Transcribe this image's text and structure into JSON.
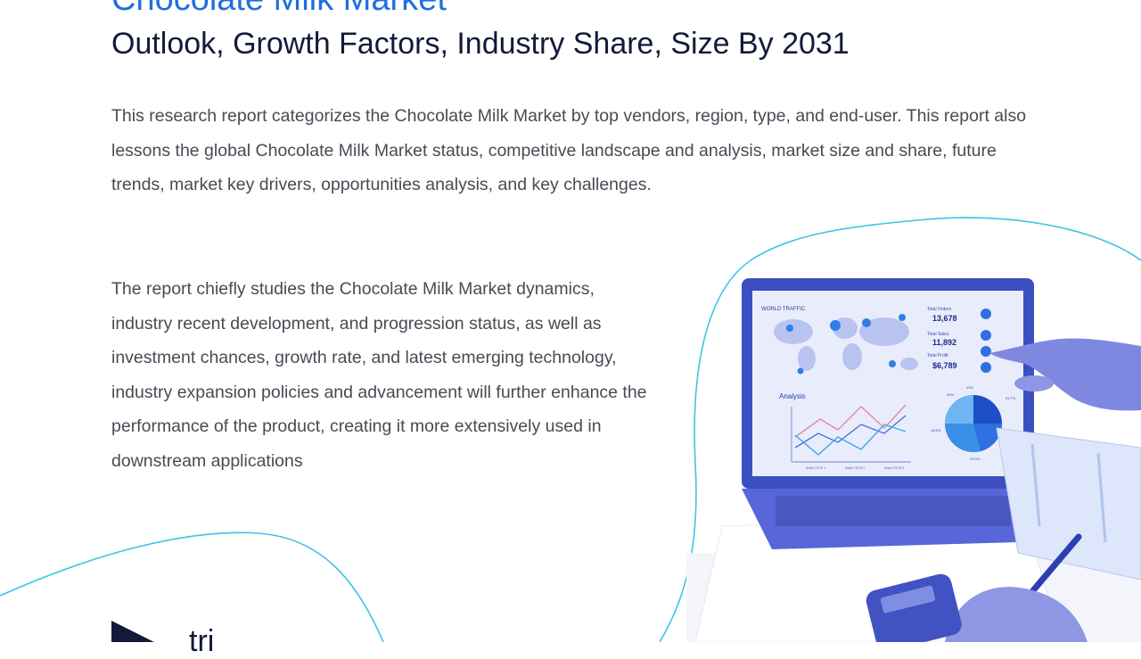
{
  "header": {
    "title": "Chocolate Milk Market",
    "subtitle": "Outlook, Growth Factors, Industry Share, Size By 2031"
  },
  "body": {
    "paragraph1": "This research report categorizes the Chocolate Milk Market by top vendors, region, type, and end-user. This report also lessons the global Chocolate Milk Market status, competitive landscape and analysis, market size and share, future trends, market key drivers, opportunities analysis, and key challenges.",
    "paragraph2": "The report chiefly studies the Chocolate Milk Market dynamics, industry recent development, and progression status, as well as investment chances, growth rate, and latest emerging technology, industry expansion policies and advancement will further enhance the performance of the product, creating it more extensively used in downstream applications"
  },
  "illustration": {
    "screen_title": "WORLD TRAFFIC",
    "stats": [
      {
        "label": "Total Orders",
        "value": "13,678"
      },
      {
        "label": "Total Sales",
        "value": "11,892"
      },
      {
        "label": "Total Profit",
        "value": "$6,789"
      }
    ],
    "chart_label": "Analysis",
    "legend": [
      "ANALYTICS 1",
      "ANALYTICS 2",
      "ANALYTICS 3"
    ],
    "pie_labels": [
      "30%",
      "22%",
      "31.7%",
      "15.6%",
      "23.5%"
    ]
  },
  "footer": {
    "logo_text": "tri"
  },
  "colors": {
    "accent_blue": "#1d6fe0",
    "curve_cyan": "#3cc4e6",
    "dark_navy": "#121a3a",
    "body_text": "#4a4a55"
  }
}
